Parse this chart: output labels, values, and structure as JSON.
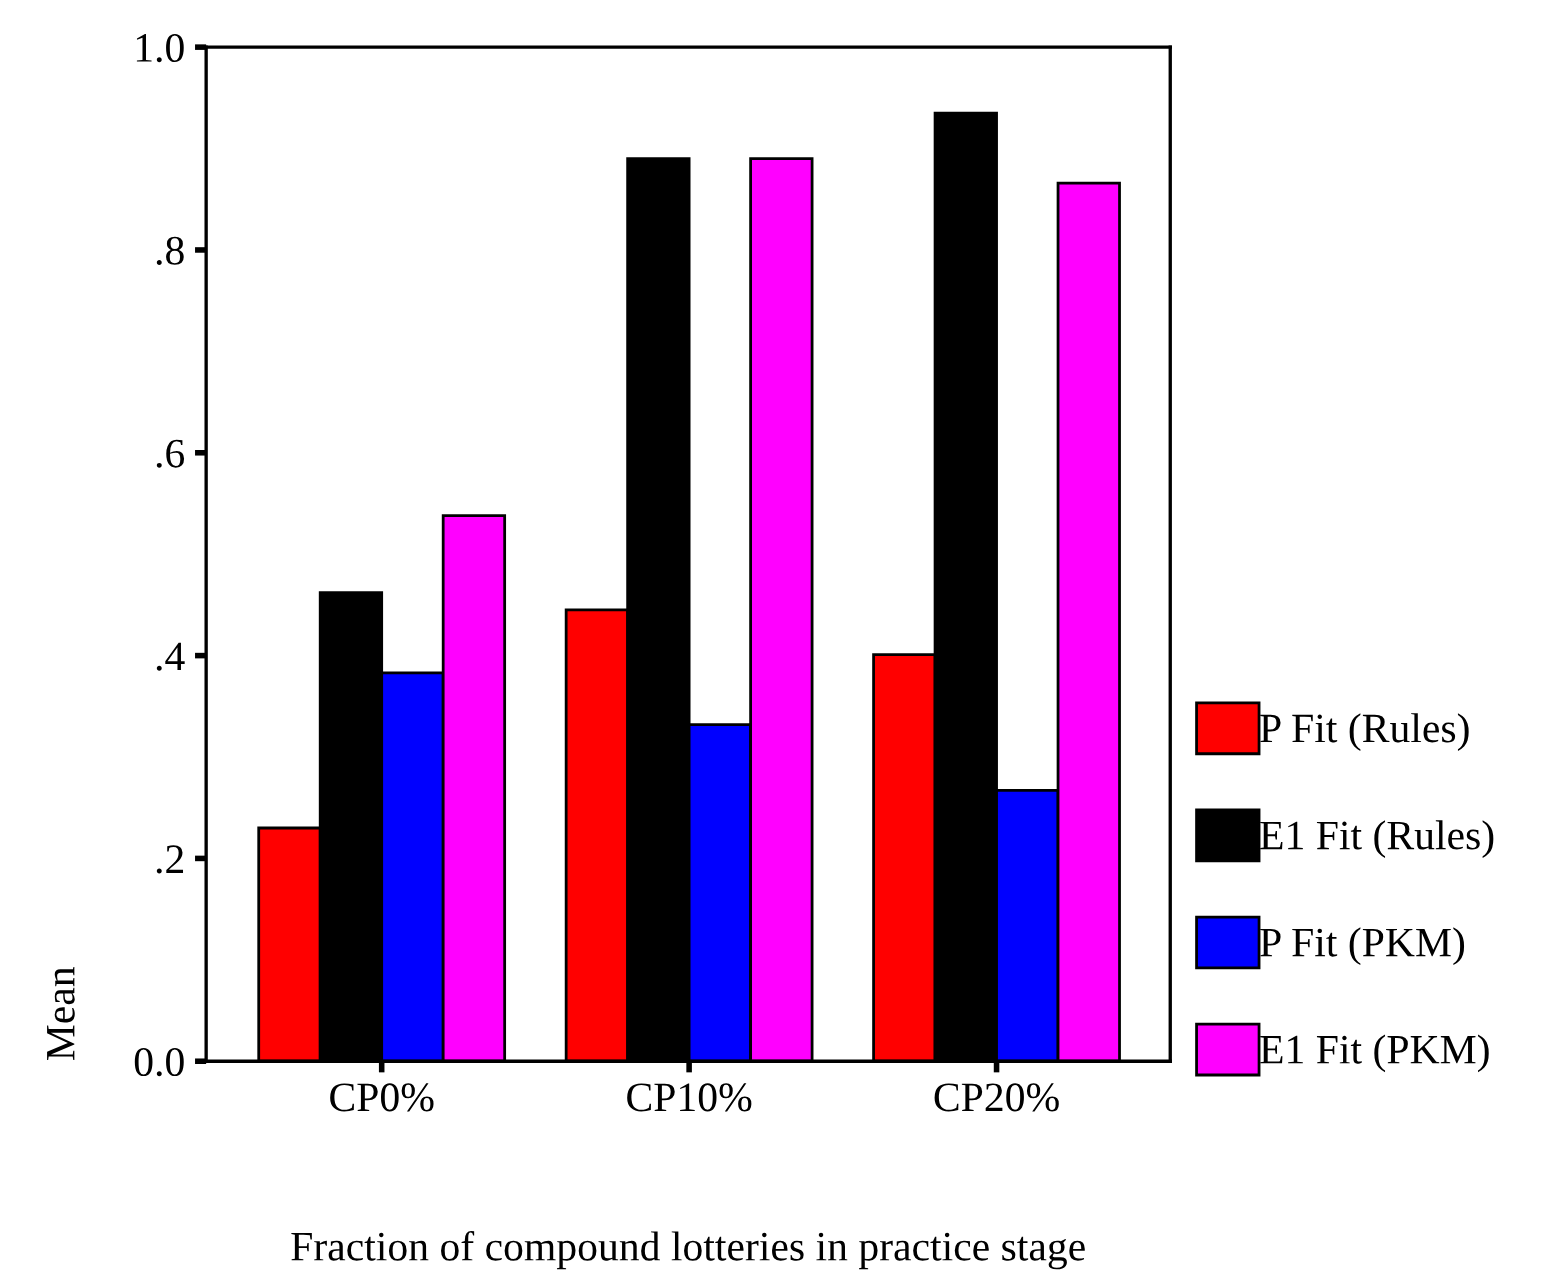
{
  "chart_data": {
    "type": "bar",
    "xlabel": "Fraction of compound lotteries in practice stage",
    "ylabel": "Mean",
    "categories": [
      "CP0%",
      "CP10%",
      "CP20%"
    ],
    "series": [
      {
        "name": "P Fit (Rules)",
        "color": "#ff0000",
        "values": [
          0.23,
          0.445,
          0.401
        ]
      },
      {
        "name": "E1 Fit (Rules)",
        "color": "#000000",
        "values": [
          0.462,
          0.89,
          0.935
        ]
      },
      {
        "name": "P Fit (PKM)",
        "color": "#0000ff",
        "values": [
          0.383,
          0.332,
          0.267
        ]
      },
      {
        "name": "E1 Fit (PKM)",
        "color": "#ff00ff",
        "values": [
          0.538,
          0.89,
          0.866
        ]
      }
    ],
    "ylim": [
      0,
      1.0
    ],
    "yticks": [
      {
        "value": 0,
        "label": "0.0"
      },
      {
        "value": 0.2,
        "label": ".2"
      },
      {
        "value": 0.4,
        "label": ".4"
      },
      {
        "value": 0.6,
        "label": ".6"
      },
      {
        "value": 0.8,
        "label": ".8"
      },
      {
        "value": 1.0,
        "label": "1.0"
      }
    ],
    "grid": false,
    "legend": "right"
  }
}
